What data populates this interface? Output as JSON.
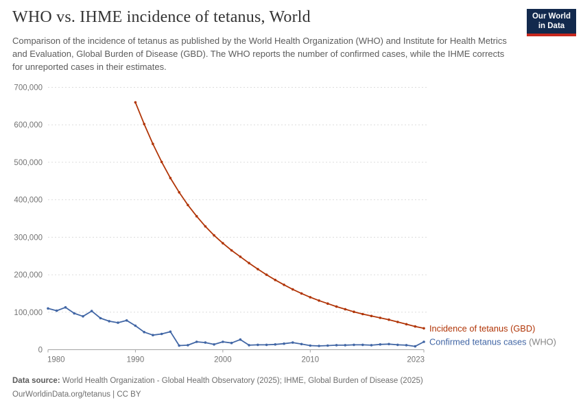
{
  "header": {
    "title": "WHO vs. IHME incidence of tetanus, World",
    "subtitle": "Comparison of the incidence of tetanus as published by the World Health Organization (WHO) and Institute for Health Metrics and Evaluation, Global Burden of Disease (GBD). The WHO reports the number of confirmed cases, while the IHME corrects for unreported cases in their estimates.",
    "logo": {
      "line1": "Our World",
      "line2": "in Data",
      "bg_color": "#12294d",
      "stripe_color": "#c7271d"
    }
  },
  "chart_data": {
    "type": "line",
    "title": "WHO vs. IHME incidence of tetanus, World",
    "xlabel": "",
    "ylabel": "",
    "x_range": [
      1980,
      2023
    ],
    "x_ticks": [
      1980,
      1990,
      2000,
      2010,
      2023
    ],
    "ylim": [
      0,
      700000
    ],
    "y_ticks": [
      0,
      100000,
      200000,
      300000,
      400000,
      500000,
      600000,
      700000
    ],
    "grid": "horizontal-dashed",
    "legend_position": "line-end-labels",
    "series": [
      {
        "name": "Incidence of tetanus (GBD)",
        "label": "Incidence of tetanus (GBD)",
        "label_suffix": "",
        "color": "#b13507",
        "start_year": 1990,
        "values": [
          660000,
          602000,
          549000,
          501000,
          458000,
          420000,
          386000,
          356000,
          329000,
          305000,
          284000,
          265000,
          248000,
          231000,
          215000,
          200000,
          186000,
          173000,
          161000,
          150000,
          140000,
          131000,
          123000,
          115000,
          108000,
          101000,
          95000,
          90000,
          85000,
          80000,
          74000,
          68000,
          62000,
          57000
        ]
      },
      {
        "name": "Confirmed tetanus cases (WHO)",
        "label": "Confirmed tetanus cases",
        "label_suffix": " (WHO)",
        "color": "#4166a5",
        "start_year": 1980,
        "values": [
          110000,
          104000,
          113000,
          97000,
          89000,
          103000,
          84000,
          76000,
          72000,
          78000,
          64000,
          47000,
          39000,
          42000,
          48000,
          11000,
          12000,
          21000,
          19000,
          14000,
          21000,
          18000,
          27000,
          12000,
          13000,
          13000,
          14000,
          16000,
          19000,
          15000,
          11000,
          10000,
          11000,
          12000,
          12000,
          13000,
          13000,
          12000,
          14000,
          15000,
          13000,
          12000,
          9000,
          21000
        ]
      }
    ],
    "colors": {
      "gridline": "#dcdcdc",
      "axis": "#a3a3a3",
      "tick_text": "#737373",
      "label_suffix": "#858585"
    }
  },
  "footer": {
    "data_source_label": "Data source:",
    "data_source": " World Health Organization - Global Health Observatory (2025); IHME, Global Burden of Disease (2025)",
    "note": "OurWorldinData.org/tetanus | CC BY"
  }
}
